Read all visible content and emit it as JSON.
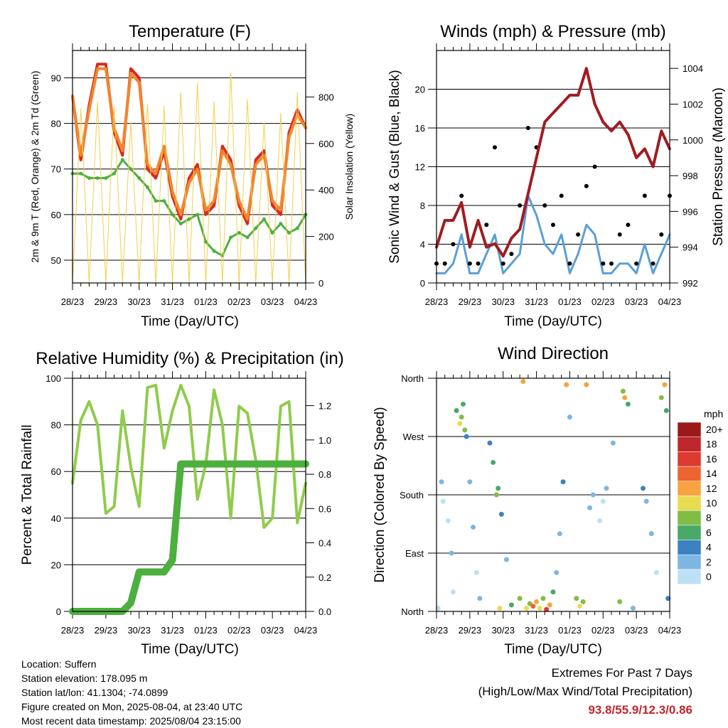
{
  "x_ticks": [
    "28/23",
    "29/23",
    "30/23",
    "31/23",
    "01/23",
    "02/23",
    "03/23",
    "04/23"
  ],
  "info": {
    "location": "Location: Suffern",
    "elevation": "Station elevation: 178.095 m",
    "latlon": "Station lat/lon: 41.1304; -74.0899",
    "created": "Figure created on Mon, 2025-08-04, at 23:40 UTC",
    "recent": "Most recent data timestamp: 2025/08/04 23:15:00"
  },
  "extremes": {
    "title": "Extremes For Past 7 Days",
    "subtitle": "(High/Low/Max Wind/Total Precipitation)",
    "values": "93.8/55.9/12.3/0.86"
  },
  "colors": {
    "red": "#d42a22",
    "orange": "#f2862b",
    "green": "#4caf3e",
    "yellow": "#f2d04b",
    "blue": "#5b9fd6",
    "maroon": "#a01c22",
    "rh": "#8fcc4b",
    "rain": "#4caf3e"
  },
  "chart_data": [
    {
      "type": "line",
      "title": "Temperature (F)",
      "xlabel": "Time (Day/UTC)",
      "ylabel": "2m & 9m T (Red, Orange) & 2m Td (Green)",
      "ylabel_right": "Solar Insolation (Yellow)",
      "ylim": [
        45,
        96
      ],
      "y_ticks": [
        50,
        60,
        70,
        80,
        90
      ],
      "ylim_right": [
        0,
        1000
      ],
      "y_ticks_right": [
        0,
        200,
        400,
        600,
        800
      ],
      "x": [
        0,
        0.25,
        0.5,
        0.75,
        1,
        1.25,
        1.5,
        1.75,
        2,
        2.25,
        2.5,
        2.75,
        3,
        3.25,
        3.5,
        3.75,
        4,
        4.25,
        4.5,
        4.75,
        5,
        5.25,
        5.5,
        5.75,
        6,
        6.25,
        6.5,
        6.75,
        7
      ],
      "series": [
        {
          "name": "2m T",
          "color": "#d42a22",
          "values": [
            86,
            72,
            84,
            93,
            93,
            78,
            73,
            92,
            90,
            70,
            68,
            74,
            64,
            59,
            68,
            71,
            60,
            62,
            75,
            72,
            62,
            58,
            72,
            74,
            62,
            60,
            78,
            83,
            79
          ]
        },
        {
          "name": "9m T",
          "color": "#f2862b",
          "values": [
            86,
            73,
            83,
            92,
            92,
            79,
            74,
            91,
            89,
            71,
            69,
            75,
            65,
            60,
            67,
            70,
            61,
            63,
            74,
            71,
            63,
            59,
            71,
            73,
            63,
            61,
            77,
            82,
            79
          ]
        },
        {
          "name": "2m Td",
          "color": "#4caf3e",
          "values": [
            69,
            69,
            68,
            68,
            68,
            69,
            72,
            70,
            68,
            66,
            63,
            63,
            60,
            58,
            59,
            60,
            54,
            52,
            51,
            55,
            56,
            55,
            57,
            59,
            56,
            58,
            56,
            57,
            60
          ]
        },
        {
          "name": "Solar Insolation",
          "color": "#f2d04b",
          "axis": "right",
          "values": [
            0,
            750,
            0,
            780,
            0,
            760,
            0,
            690,
            0,
            770,
            0,
            760,
            0,
            820,
            0,
            860,
            0,
            780,
            0,
            900,
            0,
            790,
            0,
            690,
            0,
            730,
            0,
            820,
            0
          ]
        }
      ]
    },
    {
      "type": "line",
      "title": "Winds (mph) & Pressure (mb)",
      "xlabel": "Time (Day/UTC)",
      "ylabel": "Sonic Wind & Gust (Blue, Black)",
      "ylabel_right": "Station Pressure (Maroon)",
      "ylim": [
        0,
        24
      ],
      "y_ticks": [
        0,
        4,
        8,
        12,
        16,
        20
      ],
      "ylim_right": [
        992,
        1005
      ],
      "y_ticks_right": [
        992,
        994,
        996,
        998,
        1000,
        1002,
        1004
      ],
      "x": [
        0,
        0.25,
        0.5,
        0.75,
        1,
        1.25,
        1.5,
        1.75,
        2,
        2.25,
        2.5,
        2.75,
        3,
        3.25,
        3.5,
        3.75,
        4,
        4.25,
        4.5,
        4.75,
        5,
        5.25,
        5.5,
        5.75,
        6,
        6.25,
        6.5,
        6.75,
        7
      ],
      "series": [
        {
          "name": "Sonic Wind",
          "color": "#5b9fd6",
          "values": [
            1,
            1,
            2,
            5,
            1,
            1,
            3,
            5,
            1,
            2,
            3,
            9,
            7,
            4,
            3,
            5,
            1,
            3,
            6,
            5,
            1,
            1,
            2,
            2,
            1,
            4,
            1,
            3,
            5
          ]
        },
        {
          "name": "Gust",
          "color": "#000000",
          "values": [
            2,
            2,
            4,
            9,
            2,
            2,
            6,
            14,
            2,
            3,
            8,
            16,
            14,
            8,
            6,
            9,
            2,
            5,
            10,
            12,
            2,
            2,
            5,
            6,
            2,
            9,
            2,
            5,
            9
          ]
        },
        {
          "name": "Station Pressure",
          "color": "#a01c22",
          "axis": "right",
          "values": [
            994,
            995.5,
            995.5,
            996.5,
            994,
            995.5,
            994,
            994.2,
            993.5,
            994.5,
            995,
            997,
            999,
            1001,
            1001.5,
            1002,
            1002.5,
            1002.5,
            1004,
            1002,
            1001,
            1000.5,
            1001,
            1000.3,
            999,
            999.5,
            998.5,
            1000.5,
            999.5
          ]
        }
      ]
    },
    {
      "type": "line",
      "title": "Relative Humidity (%) & Precipitation (in)",
      "xlabel": "Time (Day/UTC)",
      "ylabel": "Percent & Total Rainfall",
      "ylim": [
        0,
        100
      ],
      "y_ticks": [
        0,
        20,
        40,
        60,
        80,
        100
      ],
      "ylim_right": [
        0,
        1.36
      ],
      "y_ticks_right": [
        0.0,
        0.2,
        0.4,
        0.6,
        0.8,
        1.0,
        1.2
      ],
      "x": [
        0,
        0.25,
        0.5,
        0.75,
        1,
        1.25,
        1.5,
        1.75,
        2,
        2.25,
        2.5,
        2.75,
        3,
        3.25,
        3.5,
        3.75,
        4,
        4.25,
        4.5,
        4.75,
        5,
        5.25,
        5.5,
        5.75,
        6,
        6.25,
        6.5,
        6.75,
        7
      ],
      "series": [
        {
          "name": "Relative Humidity",
          "color": "#8fcc4b",
          "values": [
            55,
            82,
            90,
            80,
            42,
            45,
            86,
            62,
            45,
            96,
            97,
            70,
            86,
            97,
            88,
            48,
            63,
            95,
            80,
            40,
            88,
            85,
            65,
            36,
            40,
            88,
            90,
            38,
            55
          ]
        },
        {
          "name": "Total Rainfall",
          "color": "#4caf3e",
          "axis": "right",
          "values": [
            0,
            0,
            0,
            0,
            0,
            0,
            0,
            0.05,
            0.23,
            0.23,
            0.23,
            0.23,
            0.3,
            0.86,
            0.86,
            0.86,
            0.86,
            0.86,
            0.86,
            0.86,
            0.86,
            0.86,
            0.86,
            0.86,
            0.86,
            0.86,
            0.86,
            0.86,
            0.86
          ]
        }
      ]
    },
    {
      "type": "scatter",
      "title": "Wind Direction",
      "xlabel": "Time (Day/UTC)",
      "ylabel": "Direction (Colored By Speed)",
      "y_tick_labels": [
        "North",
        "East",
        "South",
        "West",
        "North"
      ],
      "ylim": [
        0,
        360
      ],
      "legend_title": "mph",
      "legend_labels": [
        "20+",
        "18",
        "16",
        "14",
        "12",
        "10",
        "8",
        "6",
        "4",
        "2",
        "0"
      ],
      "legend_colors": [
        "#9a1a1a",
        "#c0272d",
        "#dc3a2f",
        "#ee6430",
        "#f7a440",
        "#e8dc50",
        "#80bd45",
        "#47a868",
        "#3c82c0",
        "#7db6e3",
        "#bde0f5"
      ],
      "points": [
        {
          "x": 0.05,
          "y": 5,
          "s": 0
        },
        {
          "x": 0.15,
          "y": 200,
          "s": 1
        },
        {
          "x": 0.2,
          "y": 170,
          "s": 0
        },
        {
          "x": 0.35,
          "y": 140,
          "s": 0
        },
        {
          "x": 0.45,
          "y": 90,
          "s": 1
        },
        {
          "x": 0.5,
          "y": 30,
          "s": 0
        },
        {
          "x": 0.6,
          "y": 310,
          "s": 3
        },
        {
          "x": 0.7,
          "y": 290,
          "s": 5
        },
        {
          "x": 0.75,
          "y": 300,
          "s": 4
        },
        {
          "x": 0.8,
          "y": 320,
          "s": 3
        },
        {
          "x": 0.85,
          "y": 280,
          "s": 4
        },
        {
          "x": 0.9,
          "y": 270,
          "s": 2
        },
        {
          "x": 1.0,
          "y": 200,
          "s": 1
        },
        {
          "x": 1.1,
          "y": 130,
          "s": 1
        },
        {
          "x": 1.2,
          "y": 60,
          "s": 0
        },
        {
          "x": 1.3,
          "y": 20,
          "s": 1
        },
        {
          "x": 1.6,
          "y": 260,
          "s": 2
        },
        {
          "x": 1.7,
          "y": 230,
          "s": 3
        },
        {
          "x": 1.8,
          "y": 180,
          "s": 4
        },
        {
          "x": 1.85,
          "y": 190,
          "s": 3
        },
        {
          "x": 1.9,
          "y": 5,
          "s": 5
        },
        {
          "x": 1.95,
          "y": 150,
          "s": 2
        },
        {
          "x": 2.1,
          "y": 80,
          "s": 1
        },
        {
          "x": 2.25,
          "y": 10,
          "s": 3
        },
        {
          "x": 2.5,
          "y": 20,
          "s": 4
        },
        {
          "x": 2.6,
          "y": 355,
          "s": 6
        },
        {
          "x": 2.7,
          "y": 5,
          "s": 5
        },
        {
          "x": 2.8,
          "y": 12,
          "s": 4
        },
        {
          "x": 2.9,
          "y": 8,
          "s": 7
        },
        {
          "x": 3.0,
          "y": 15,
          "s": 6
        },
        {
          "x": 3.1,
          "y": 5,
          "s": 5
        },
        {
          "x": 3.2,
          "y": 20,
          "s": 4
        },
        {
          "x": 3.3,
          "y": 3,
          "s": 8
        },
        {
          "x": 3.4,
          "y": 10,
          "s": 6
        },
        {
          "x": 3.5,
          "y": 30,
          "s": 3
        },
        {
          "x": 3.6,
          "y": 60,
          "s": 1
        },
        {
          "x": 3.7,
          "y": 120,
          "s": 1
        },
        {
          "x": 3.8,
          "y": 200,
          "s": 2
        },
        {
          "x": 3.9,
          "y": 350,
          "s": 6
        },
        {
          "x": 4.0,
          "y": 300,
          "s": 1
        },
        {
          "x": 4.2,
          "y": 20,
          "s": 4
        },
        {
          "x": 4.3,
          "y": 8,
          "s": 5
        },
        {
          "x": 4.4,
          "y": 15,
          "s": 4
        },
        {
          "x": 4.5,
          "y": 350,
          "s": 6
        },
        {
          "x": 4.6,
          "y": 160,
          "s": 1
        },
        {
          "x": 4.7,
          "y": 180,
          "s": 1
        },
        {
          "x": 4.9,
          "y": 140,
          "s": 0
        },
        {
          "x": 5.0,
          "y": 170,
          "s": 0
        },
        {
          "x": 5.1,
          "y": 190,
          "s": 1
        },
        {
          "x": 5.3,
          "y": 260,
          "s": 1
        },
        {
          "x": 5.5,
          "y": 15,
          "s": 4
        },
        {
          "x": 5.6,
          "y": 340,
          "s": 4
        },
        {
          "x": 5.65,
          "y": 330,
          "s": 6
        },
        {
          "x": 5.75,
          "y": 320,
          "s": 3
        },
        {
          "x": 5.9,
          "y": 5,
          "s": 1
        },
        {
          "x": 6.2,
          "y": 190,
          "s": 2
        },
        {
          "x": 6.3,
          "y": 170,
          "s": 1
        },
        {
          "x": 6.45,
          "y": 120,
          "s": 1
        },
        {
          "x": 6.6,
          "y": 60,
          "s": 0
        },
        {
          "x": 6.75,
          "y": 330,
          "s": 4
        },
        {
          "x": 6.85,
          "y": 350,
          "s": 6
        },
        {
          "x": 6.9,
          "y": 310,
          "s": 3
        },
        {
          "x": 6.95,
          "y": 20,
          "s": 2
        }
      ]
    }
  ]
}
